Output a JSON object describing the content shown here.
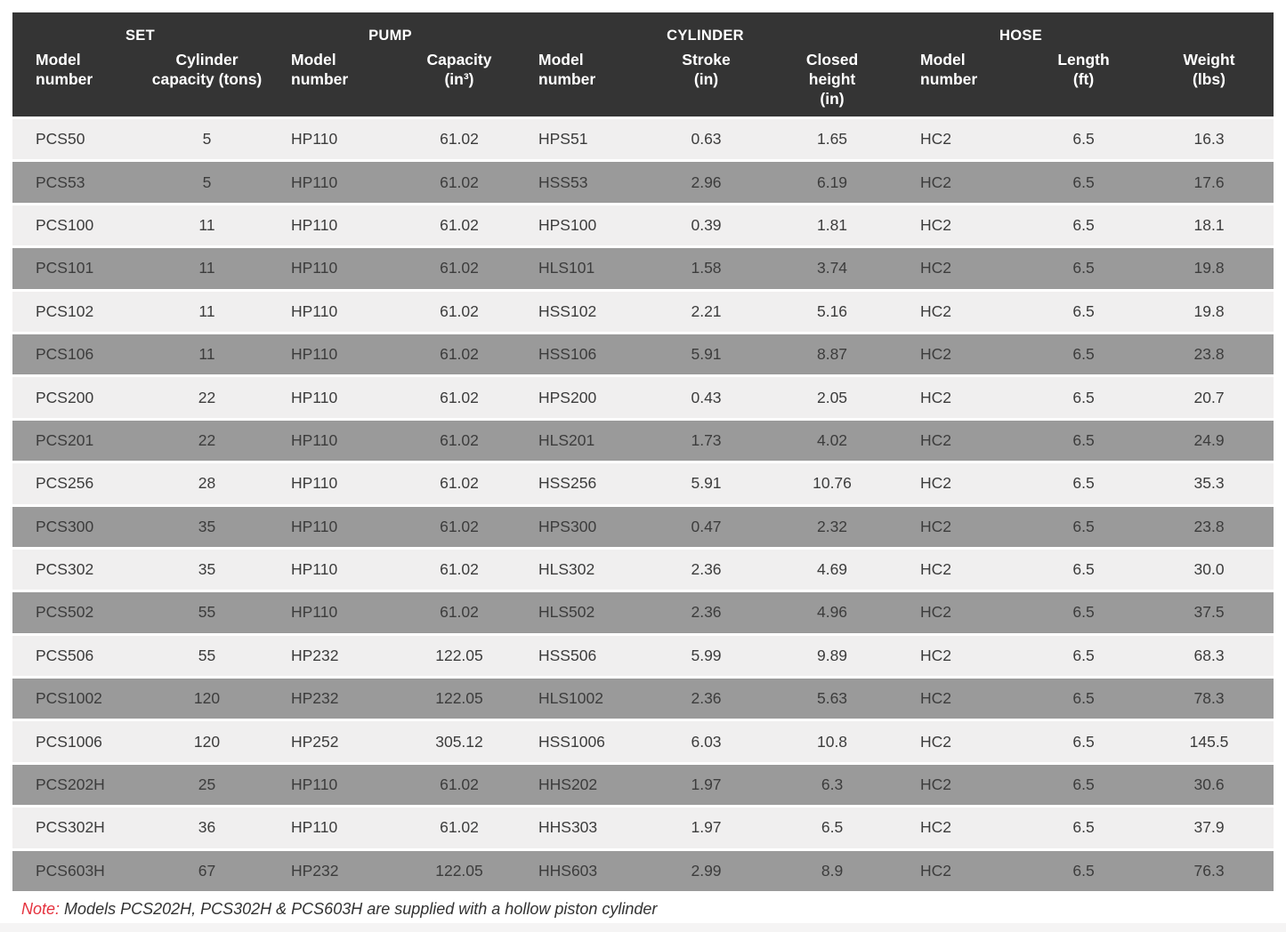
{
  "colors": {
    "header_bg": "#343434",
    "row_light": "#f0efef",
    "row_dark": "#9a9a9a",
    "separator": "#ffffff",
    "body_text": "#3c3c3c",
    "note_red": "#e5323e"
  },
  "table": {
    "group_headers": [
      {
        "label": "SET"
      },
      {
        "label": "PUMP"
      },
      {
        "label": "CYLINDER"
      },
      {
        "label": "HOSE"
      }
    ],
    "column_headers": [
      "Model\nnumber",
      "Cylinder\ncapacity (tons)",
      "Model\nnumber",
      "Capacity\n(in³)",
      "Model\nnumber",
      "Stroke\n(in)",
      "Closed\nheight\n(in)",
      "Model\nnumber",
      "Length\n(ft)",
      "Weight\n(lbs)"
    ],
    "rows": [
      [
        "PCS50",
        "5",
        "HP110",
        "61.02",
        "HPS51",
        "0.63",
        "1.65",
        "HC2",
        "6.5",
        "16.3"
      ],
      [
        "PCS53",
        "5",
        "HP110",
        "61.02",
        "HSS53",
        "2.96",
        "6.19",
        "HC2",
        "6.5",
        "17.6"
      ],
      [
        "PCS100",
        "11",
        "HP110",
        "61.02",
        "HPS100",
        "0.39",
        "1.81",
        "HC2",
        "6.5",
        "18.1"
      ],
      [
        "PCS101",
        "11",
        "HP110",
        "61.02",
        "HLS101",
        "1.58",
        "3.74",
        "HC2",
        "6.5",
        "19.8"
      ],
      [
        "PCS102",
        "11",
        "HP110",
        "61.02",
        "HSS102",
        "2.21",
        "5.16",
        "HC2",
        "6.5",
        "19.8"
      ],
      [
        "PCS106",
        "11",
        "HP110",
        "61.02",
        "HSS106",
        "5.91",
        "8.87",
        "HC2",
        "6.5",
        "23.8"
      ],
      [
        "PCS200",
        "22",
        "HP110",
        "61.02",
        "HPS200",
        "0.43",
        "2.05",
        "HC2",
        "6.5",
        "20.7"
      ],
      [
        "PCS201",
        "22",
        "HP110",
        "61.02",
        "HLS201",
        "1.73",
        "4.02",
        "HC2",
        "6.5",
        "24.9"
      ],
      [
        "PCS256",
        "28",
        "HP110",
        "61.02",
        "HSS256",
        "5.91",
        "10.76",
        "HC2",
        "6.5",
        "35.3"
      ],
      [
        "PCS300",
        "35",
        "HP110",
        "61.02",
        "HPS300",
        "0.47",
        "2.32",
        "HC2",
        "6.5",
        "23.8"
      ],
      [
        "PCS302",
        "35",
        "HP110",
        "61.02",
        "HLS302",
        "2.36",
        "4.69",
        "HC2",
        "6.5",
        "30.0"
      ],
      [
        "PCS502",
        "55",
        "HP110",
        "61.02",
        "HLS502",
        "2.36",
        "4.96",
        "HC2",
        "6.5",
        "37.5"
      ],
      [
        "PCS506",
        "55",
        "HP232",
        "122.05",
        "HSS506",
        "5.99",
        "9.89",
        "HC2",
        "6.5",
        "68.3"
      ],
      [
        "PCS1002",
        "120",
        "HP232",
        "122.05",
        "HLS1002",
        "2.36",
        "5.63",
        "HC2",
        "6.5",
        "78.3"
      ],
      [
        "PCS1006",
        "120",
        "HP252",
        "305.12",
        "HSS1006",
        "6.03",
        "10.8",
        "HC2",
        "6.5",
        "145.5"
      ],
      [
        "PCS202H",
        "25",
        "HP110",
        "61.02",
        "HHS202",
        "1.97",
        "6.3",
        "HC2",
        "6.5",
        "30.6"
      ],
      [
        "PCS302H",
        "36",
        "HP110",
        "61.02",
        "HHS303",
        "1.97",
        "6.5",
        "HC2",
        "6.5",
        "37.9"
      ],
      [
        "PCS603H",
        "67",
        "HP232",
        "122.05",
        "HHS603",
        "2.99",
        "8.9",
        "HC2",
        "6.5",
        "76.3"
      ]
    ]
  },
  "note": {
    "prefix": "Note:",
    "text": "Models PCS202H, PCS302H & PCS603H are supplied with a hollow piston cylinder"
  }
}
